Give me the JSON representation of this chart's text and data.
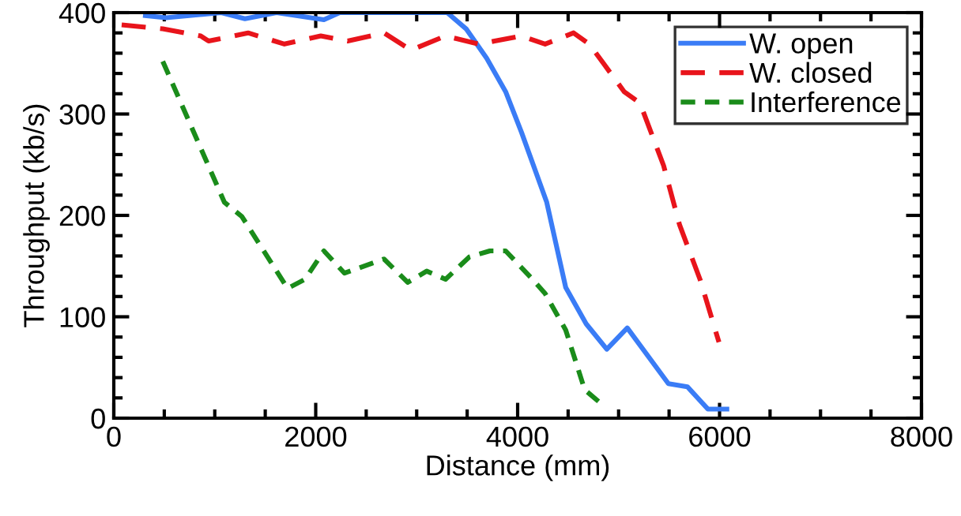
{
  "chart_data": {
    "type": "line",
    "xlabel": "Distance (mm)",
    "ylabel": "Throughput (kb/s)",
    "xlim": [
      0,
      8000
    ],
    "xticks": [
      0,
      2000,
      4000,
      6000,
      8000
    ],
    "ylim": [
      0,
      400
    ],
    "yticks": [
      0,
      100,
      200,
      300,
      400
    ],
    "grid": false,
    "legend": "top right",
    "marker": "none",
    "series": [
      {
        "name": "W. open",
        "color": "#3a7cf6",
        "line_style": "solid",
        "x": [
          313,
          516,
          1064,
          1299,
          1612,
          2081,
          2238,
          3302,
          3490,
          3693,
          3881,
          4038,
          4288,
          4476,
          4679,
          4883,
          5086,
          5493,
          5681,
          5884,
          6072
        ],
        "values": [
          397,
          395,
          400,
          394,
          400,
          393,
          400,
          400,
          384,
          355,
          322,
          282,
          213,
          129,
          93,
          68,
          89,
          34,
          31,
          9,
          9
        ]
      },
      {
        "name": "W. closed",
        "color": "#e8141b",
        "line_style": "dashed",
        "x": [
          78,
          485,
          861,
          939,
          1330,
          1690,
          2050,
          2316,
          2676,
          2942,
          3286,
          3615,
          3772,
          4038,
          4272,
          4554,
          4710,
          5055,
          5211,
          5446,
          5603,
          5806,
          5994
        ],
        "values": [
          388,
          384,
          377,
          372,
          380,
          369,
          377,
          372,
          380,
          363,
          377,
          369,
          372,
          377,
          369,
          380,
          369,
          322,
          311,
          249,
          191,
          137,
          75
        ]
      },
      {
        "name": "Interference",
        "color": "#1a8c1a",
        "line_style": "dashed",
        "x": [
          485,
          1095,
          1268,
          1721,
          1894,
          2081,
          2285,
          2676,
          2911,
          3099,
          3286,
          3521,
          3725,
          3881,
          4147,
          4272,
          4476,
          4664,
          4867
        ],
        "values": [
          352,
          213,
          199,
          128,
          137,
          165,
          143,
          157,
          134,
          145,
          137,
          159,
          165,
          165,
          137,
          123,
          87,
          28,
          11
        ]
      }
    ]
  }
}
